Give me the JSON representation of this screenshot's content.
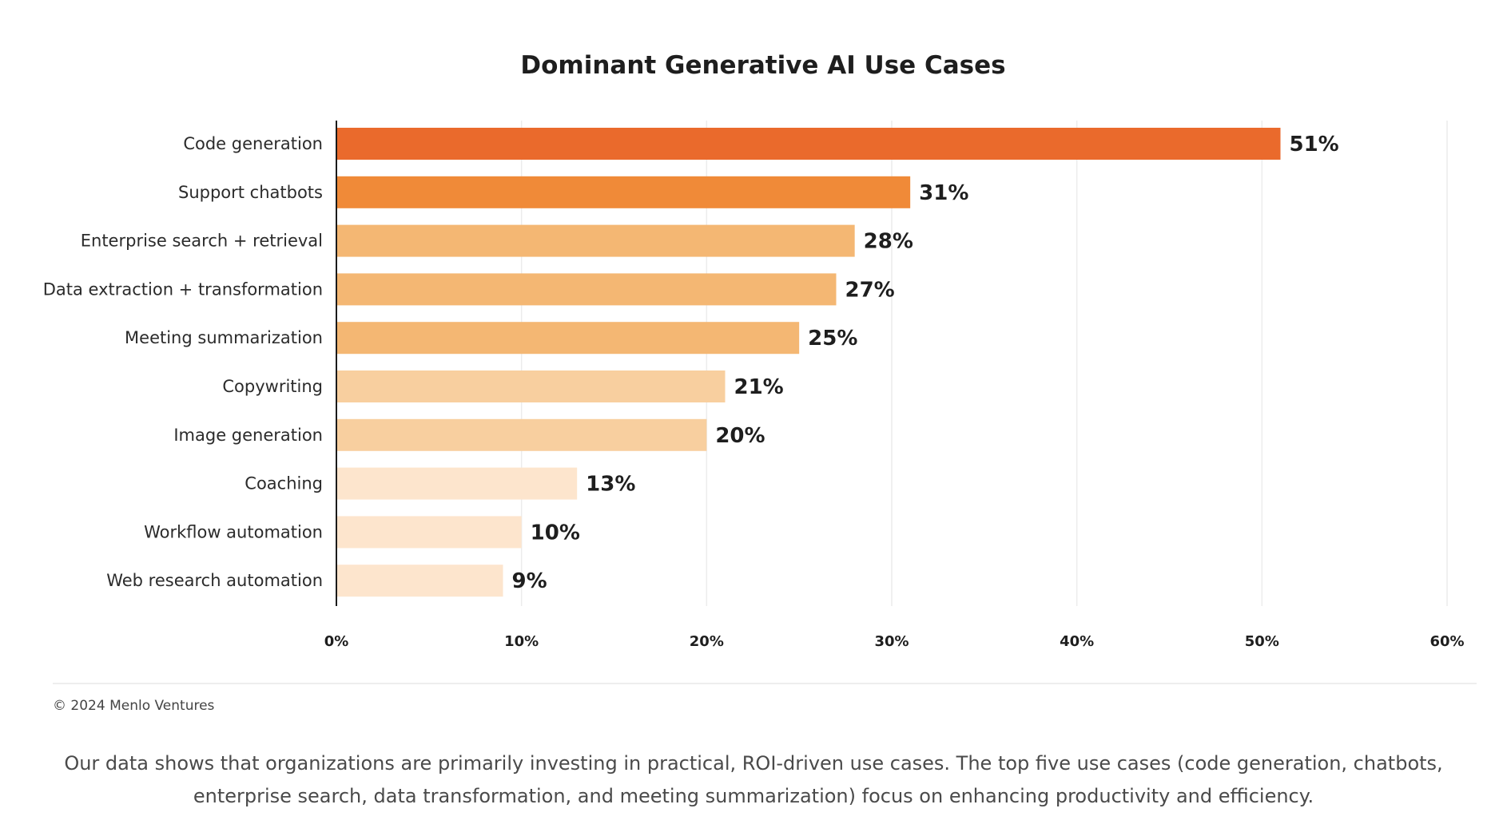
{
  "chart_data": {
    "type": "bar",
    "orientation": "horizontal",
    "title": "Dominant Generative AI Use Cases",
    "xlabel": "",
    "ylabel": "",
    "categories": [
      "Code generation",
      "Support chatbots",
      "Enterprise search + retrieval",
      "Data extraction + transformation",
      "Meeting summarization",
      "Copywriting",
      "Image generation",
      "Coaching",
      "Workflow automation",
      "Web research automation"
    ],
    "values": [
      51,
      31,
      28,
      27,
      25,
      21,
      20,
      13,
      10,
      9
    ],
    "value_labels": [
      "51%",
      "31%",
      "28%",
      "27%",
      "25%",
      "21%",
      "20%",
      "13%",
      "10%",
      "9%"
    ],
    "colors": [
      "#EA6A2C",
      "#F08A38",
      "#F4B773",
      "#F4B773",
      "#F4B773",
      "#F8CF9F",
      "#F8CF9F",
      "#FDE5CD",
      "#FDE5CD",
      "#FDE5CD"
    ],
    "xlim": [
      0,
      60
    ],
    "xticks": [
      0,
      10,
      20,
      30,
      40,
      50,
      60
    ],
    "xtick_labels": [
      "0%",
      "10%",
      "20%",
      "30%",
      "40%",
      "50%",
      "60%"
    ],
    "grid": true,
    "legend": "none"
  },
  "footer": {
    "copyright": "© 2024 Menlo Ventures",
    "caption": "Our data shows that organizations are primarily investing in practical, ROI-driven use cases. The top five use cases (code generation, chatbots, enterprise search, data transformation, and meeting summarization) focus on enhancing productivity and efficiency."
  }
}
